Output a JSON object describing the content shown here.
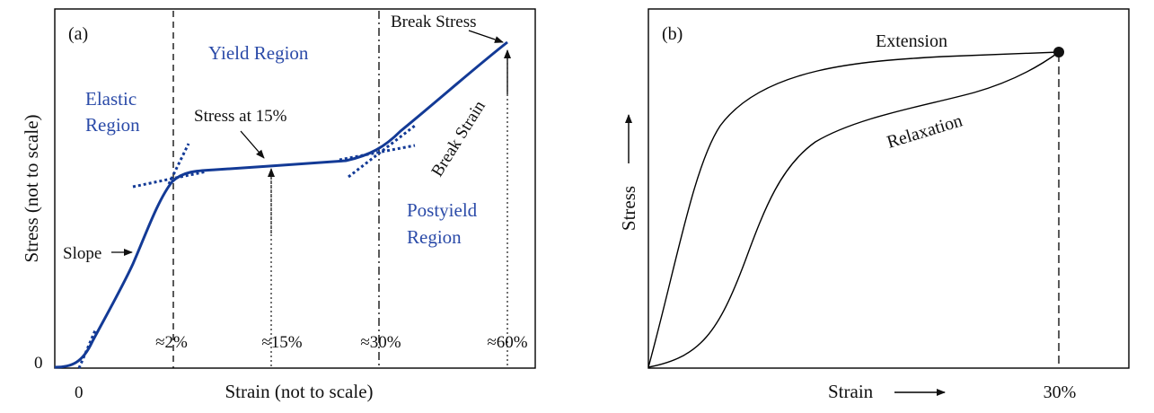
{
  "colors": {
    "curve": "#133a96",
    "blue_label": "#2a4aa8",
    "ink": "#111111",
    "frame": "#000000"
  },
  "panel_a": {
    "tag": "(a)",
    "axis_y_label": "Stress (not to scale)",
    "axis_x_label": "Strain (not to scale)",
    "origin_y": "0",
    "origin_x": "0",
    "regions": {
      "elastic_line1": "Elastic",
      "elastic_line2": "Region",
      "yield": "Yield Region",
      "postyield_line1": "Postyield",
      "postyield_line2": "Region"
    },
    "annotations": {
      "slope": "Slope",
      "stress_at_15": "Stress at 15%",
      "break_stress": "Break Stress",
      "break_strain": "Break Strain"
    },
    "strain_marks": [
      "≈2%",
      "≈15%",
      "≈30%",
      "≈60%"
    ]
  },
  "panel_b": {
    "tag": "(b)",
    "axis_y_label": "Stress",
    "axis_x_label": "Strain",
    "end_strain": "30%",
    "curve_labels": {
      "extension": "Extension",
      "relaxation": "Relaxation"
    }
  }
}
